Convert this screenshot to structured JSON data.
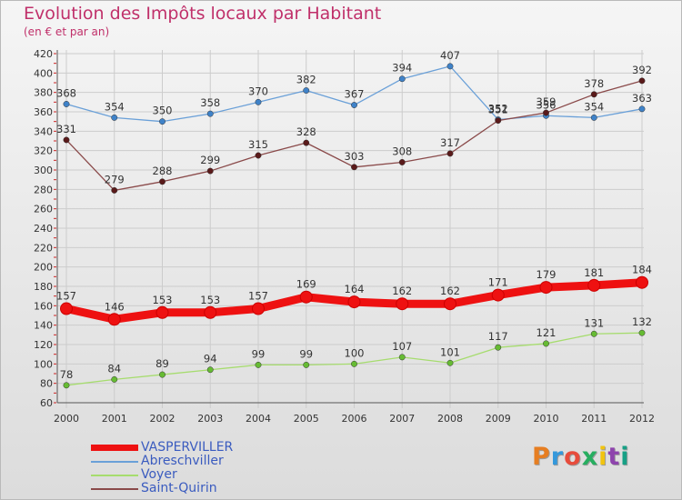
{
  "header": {
    "title": "Evolution des Impôts locaux par Habitant",
    "subtitle": "(en € et par an)"
  },
  "logo": {
    "text": "Proxiti",
    "letters": [
      "P",
      "r",
      "o",
      "x",
      "i",
      "t",
      "i"
    ],
    "colors": [
      "#e67e22",
      "#3498db",
      "#e74c3c",
      "#27ae60",
      "#f1c40f",
      "#8e44ad",
      "#16a085"
    ]
  },
  "colors": {
    "title": "#c0306a",
    "legend_text": "#3a5bbf",
    "tick_marks": "#cc2222"
  },
  "chart_data": {
    "type": "line",
    "x": [
      "2000",
      "2001",
      "2002",
      "2003",
      "2004",
      "2005",
      "2006",
      "2007",
      "2008",
      "2009",
      "2010",
      "2011",
      "2012"
    ],
    "ylim": [
      60,
      420
    ],
    "yticks": [
      60,
      80,
      100,
      120,
      140,
      160,
      180,
      200,
      220,
      240,
      260,
      280,
      300,
      320,
      340,
      360,
      380,
      400,
      420
    ],
    "grid": true,
    "legend_position": "bottom-left",
    "series": [
      {
        "name": "VASPERVILLER",
        "color": "#ee1111",
        "marker_color": "#ee1111",
        "emphasis": true,
        "values": [
          157,
          146,
          153,
          153,
          157,
          169,
          164,
          162,
          162,
          171,
          179,
          181,
          184
        ]
      },
      {
        "name": "Abreschviller",
        "color": "#6aa0d8",
        "marker_color": "#3f82c8",
        "emphasis": false,
        "values": [
          368,
          354,
          350,
          358,
          370,
          382,
          367,
          394,
          407,
          352,
          356,
          354,
          363
        ]
      },
      {
        "name": "Voyer",
        "color": "#a6dc6e",
        "marker_color": "#66bb33",
        "emphasis": false,
        "values": [
          78,
          84,
          89,
          94,
          99,
          99,
          100,
          107,
          101,
          117,
          121,
          131,
          132
        ]
      },
      {
        "name": "Saint-Quirin",
        "color": "#8a4a4a",
        "marker_color": "#5a1a1a",
        "emphasis": false,
        "values": [
          331,
          279,
          288,
          299,
          315,
          328,
          303,
          308,
          317,
          351,
          359,
          378,
          392
        ]
      }
    ]
  }
}
